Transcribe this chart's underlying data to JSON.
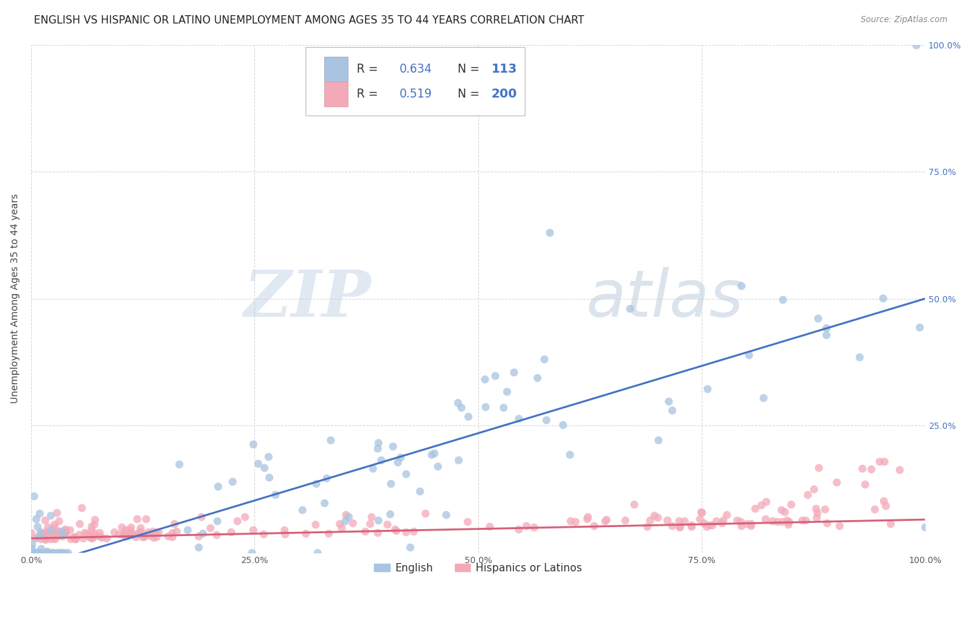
{
  "title": "ENGLISH VS HISPANIC OR LATINO UNEMPLOYMENT AMONG AGES 35 TO 44 YEARS CORRELATION CHART",
  "source": "Source: ZipAtlas.com",
  "ylabel": "Unemployment Among Ages 35 to 44 years",
  "xlim": [
    0.0,
    1.0
  ],
  "ylim": [
    0.0,
    1.0
  ],
  "xticklabels": [
    "0.0%",
    "25.0%",
    "50.0%",
    "75.0%",
    "100.0%"
  ],
  "right_yticklabels": [
    "",
    "25.0%",
    "50.0%",
    "75.0%",
    "100.0%"
  ],
  "english_R": 0.634,
  "english_N": 113,
  "hispanic_R": 0.519,
  "hispanic_N": 200,
  "english_color": "#a8c4e0",
  "hispanic_color": "#f4a9b8",
  "english_line_color": "#4472c4",
  "hispanic_line_color": "#d4607a",
  "watermark_zip": "ZIP",
  "watermark_atlas": "atlas",
  "background_color": "#ffffff",
  "grid_color": "#cccccc",
  "title_fontsize": 11,
  "label_fontsize": 10,
  "tick_fontsize": 9,
  "legend_R_label": "R =",
  "legend_N_label": "N ="
}
